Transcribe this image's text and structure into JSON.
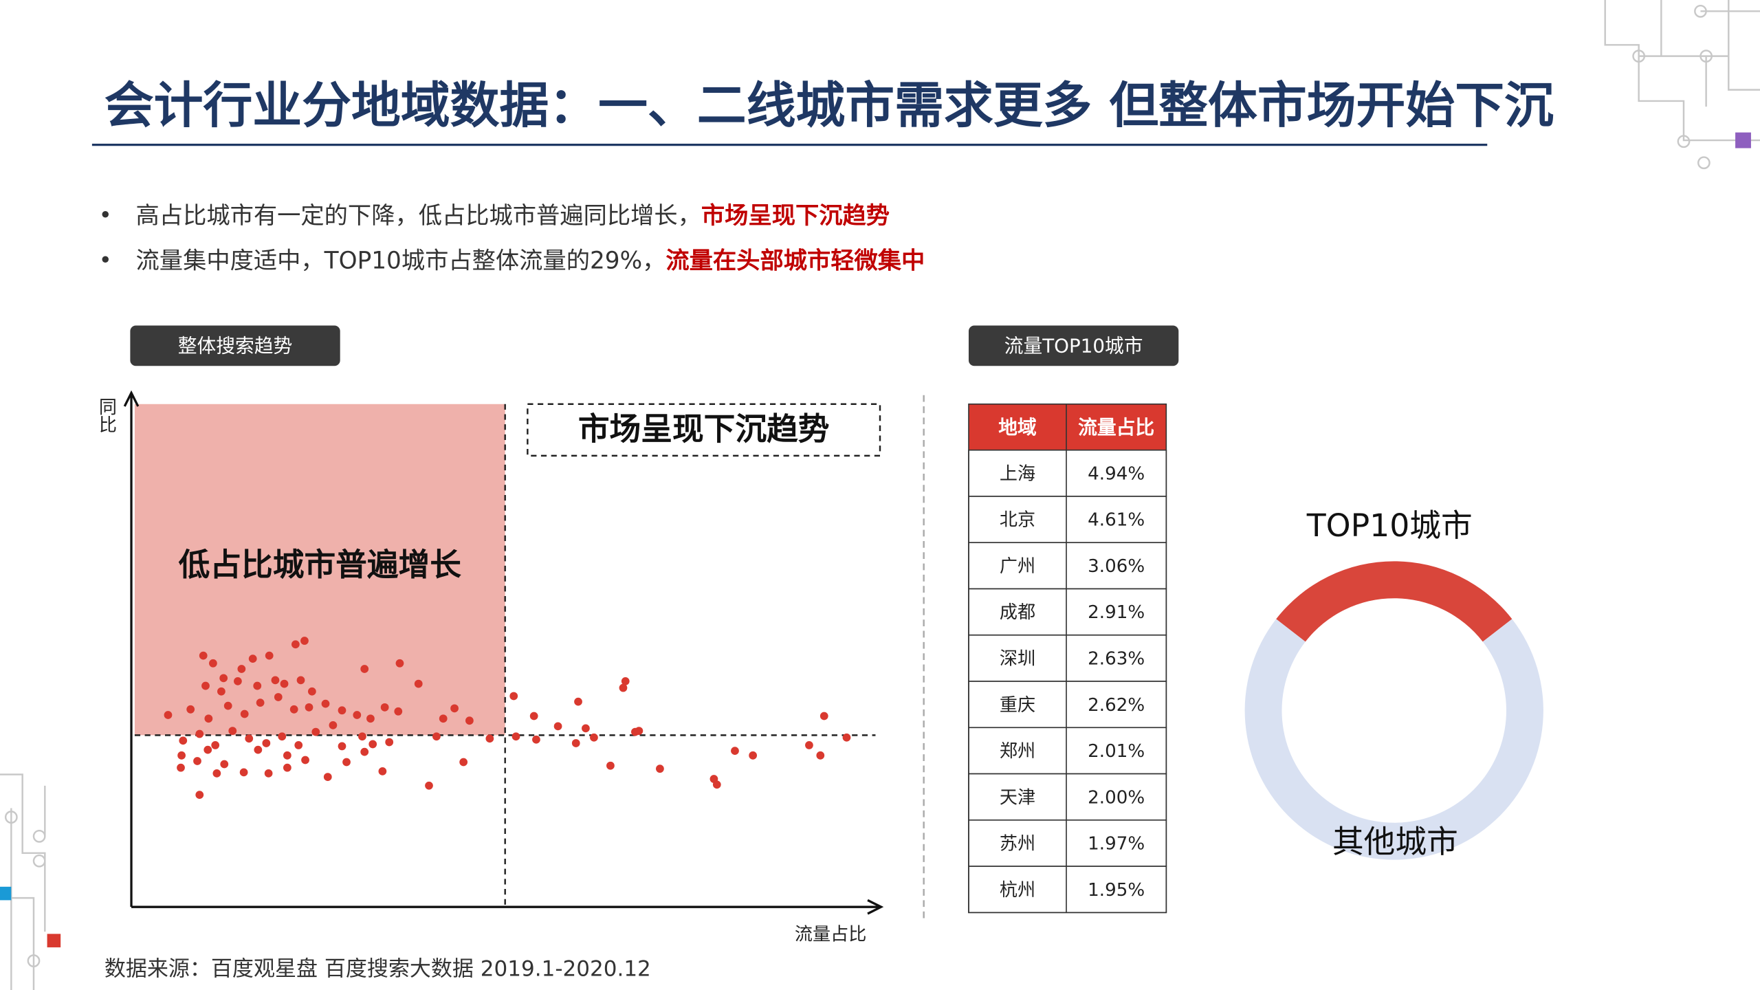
{
  "header": {
    "title": "会计行业分地域数据：一、二线城市需求更多 但整体市场开始下沉"
  },
  "bullets": [
    {
      "text": "高占比城市有一定的下降，低占比城市普遍同比增长，",
      "highlight": "市场呈现下沉趋势"
    },
    {
      "text": "流量集中度适中，TOP10城市占整体流量的29%，",
      "highlight": "流量在头部城市轻微集中"
    }
  ],
  "sections": [
    "整体搜索趋势",
    "流量TOP10城市"
  ],
  "chart_data": [
    {
      "type": "scatter",
      "x_label": "流量占比",
      "y_label": "同比",
      "annotations": [
        "低占比城市普遍增长",
        "市场呈现下沉趋势"
      ],
      "color": "#d9392f",
      "xlim": [
        0,
        100
      ],
      "ylim": [
        0,
        100
      ],
      "x": [
        9.6,
        10.9,
        16.2,
        18.4,
        21.9,
        23.1,
        14.7,
        12.3,
        9.9,
        12.0,
        14.2,
        16.8,
        19.2,
        20.4,
        22.6,
        24.1,
        31.1,
        35.8,
        38.3,
        4.9,
        7.9,
        10.3,
        12.9,
        15.1,
        17.2,
        19.6,
        21.7,
        23.7,
        25.9,
        28.1,
        30.1,
        31.9,
        33.8,
        35.6,
        41.6,
        43.1,
        45.1,
        6.9,
        9.1,
        11.2,
        13.5,
        15.7,
        18.0,
        20.1,
        22.3,
        24.6,
        26.9,
        30.8,
        34.4,
        40.7,
        47.8,
        6.6,
        8.8,
        11.4,
        15.0,
        18.3,
        20.8,
        23.2,
        26.2,
        28.7,
        31.1,
        33.5,
        39.7,
        44.3,
        9.1,
        51.0,
        53.7,
        56.9,
        59.6,
        60.6,
        61.7,
        63.9,
        65.6,
        65.9,
        67.2,
        70.5,
        77.7,
        78.1,
        80.5,
        82.9,
        90.4,
        91.9,
        92.4,
        95.4,
        51.3,
        54.0,
        59.3,
        67.7,
        6.7,
        10.2,
        12.4,
        16.9,
        20.8,
        28.1,
        32.2
      ],
      "values": [
        49.1,
        47.6,
        48.5,
        49.1,
        51.3,
        52.0,
        46.5,
        44.7,
        43.2,
        42.1,
        44.1,
        43.2,
        44.3,
        43.6,
        44.3,
        42.1,
        46.5,
        47.6,
        43.6,
        37.5,
        38.6,
        36.8,
        39.3,
        37.7,
        39.9,
        41.0,
        38.6,
        39.0,
        39.7,
        38.4,
        37.5,
        36.8,
        39.0,
        38.2,
        36.8,
        38.8,
        36.4,
        32.5,
        33.8,
        31.6,
        34.4,
        32.9,
        32.0,
        33.3,
        31.6,
        34.2,
        35.5,
        33.3,
        32.2,
        33.3,
        32.9,
        27.2,
        28.5,
        26.1,
        26.3,
        26.1,
        27.2,
        28.7,
        25.4,
        28.3,
        30.3,
        26.5,
        23.7,
        28.3,
        21.9,
        41.2,
        37.3,
        35.3,
        40.1,
        34.9,
        33.1,
        27.6,
        42.8,
        44.1,
        34.2,
        27.0,
        25.0,
        23.9,
        30.5,
        29.6,
        31.6,
        29.6,
        37.3,
        33.1,
        33.3,
        32.7,
        32.0,
        34.4,
        29.6,
        30.7,
        27.9,
        30.7,
        29.6,
        31.4,
        31.8
      ]
    },
    {
      "type": "pie",
      "categories": [
        "TOP10城市",
        "其他城市"
      ],
      "values": [
        29,
        71
      ],
      "colors": [
        "#d9463b",
        "#d9e1f2"
      ]
    }
  ],
  "table": {
    "header": [
      "地域",
      "流量占比"
    ],
    "rows": [
      [
        "上海",
        "4.94%"
      ],
      [
        "北京",
        "4.61%"
      ],
      [
        "广州",
        "3.06%"
      ],
      [
        "成都",
        "2.91%"
      ],
      [
        "深圳",
        "2.63%"
      ],
      [
        "重庆",
        "2.62%"
      ],
      [
        "郑州",
        "2.01%"
      ],
      [
        "天津",
        "2.00%"
      ],
      [
        "苏州",
        "1.97%"
      ],
      [
        "杭州",
        "1.95%"
      ]
    ]
  },
  "source": "数据来源：百度观星盘 百度搜索大数据 2019.1-2020.12"
}
